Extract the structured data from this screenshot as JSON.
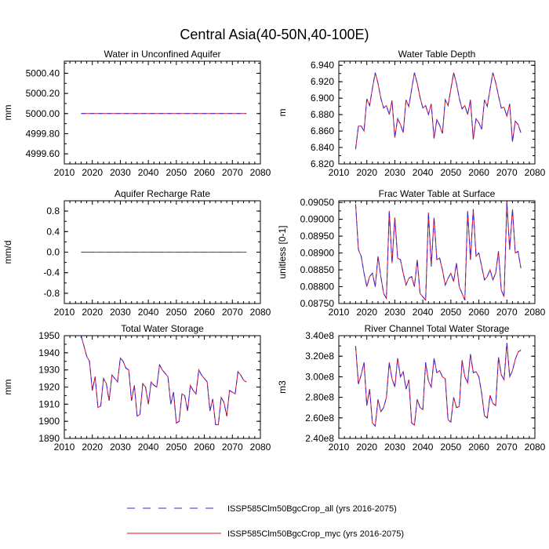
{
  "figure": {
    "title": "Central Asia(40-50N,40-100E)"
  },
  "colors": {
    "series_all": "#2b2bdd",
    "series_myc": "#e0102a",
    "axis": "#000000"
  },
  "legend": {
    "placement": "bottom-center",
    "entries": [
      "ISSP585Clm50BgcCrop_all (yrs 2016-2075)",
      "ISSP585Clm50BgcCrop_myc (yrs 2016-2075)"
    ]
  },
  "chart_data": [
    {
      "type": "line",
      "title": "Water in Unconfined Aquifer",
      "ylabel": "mm",
      "xlabel": "",
      "xlim": [
        2010,
        2080
      ],
      "ylim": [
        4999.5,
        5000.52
      ],
      "xticks": [
        2010,
        2020,
        2030,
        2040,
        2050,
        2060,
        2070,
        2080
      ],
      "xtick_labels": [
        "2010",
        "2020",
        "2030",
        "2040",
        "2050",
        "2060",
        "2070",
        "2080"
      ],
      "yticks": [
        4999.6,
        4999.8,
        5000.0,
        5000.2,
        5000.4
      ],
      "ytick_labels": [
        "4999.60",
        "4999.80",
        "5000.00",
        "5000.20",
        "5000.40"
      ],
      "x_start": 2016,
      "values": [
        5000,
        5000,
        5000,
        5000,
        5000,
        5000,
        5000,
        5000,
        5000,
        5000,
        5000,
        5000,
        5000,
        5000,
        5000,
        5000,
        5000,
        5000,
        5000,
        5000,
        5000,
        5000,
        5000,
        5000,
        5000,
        5000,
        5000,
        5000,
        5000,
        5000,
        5000,
        5000,
        5000,
        5000,
        5000,
        5000,
        5000,
        5000,
        5000,
        5000,
        5000,
        5000,
        5000,
        5000,
        5000,
        5000,
        5000,
        5000,
        5000,
        5000,
        5000,
        5000,
        5000,
        5000,
        5000,
        5000,
        5000,
        5000,
        5000,
        5000
      ]
    },
    {
      "type": "line",
      "title": "Water Table Depth",
      "ylabel": "m",
      "xlabel": "",
      "xlim": [
        2010,
        2080
      ],
      "ylim": [
        6.82,
        6.945
      ],
      "xticks": [
        2010,
        2020,
        2030,
        2040,
        2050,
        2060,
        2070,
        2080
      ],
      "xtick_labels": [
        "2010",
        "2020",
        "2030",
        "2040",
        "2050",
        "2060",
        "2070",
        "2080"
      ],
      "yticks": [
        6.82,
        6.84,
        6.86,
        6.88,
        6.9,
        6.92,
        6.94
      ],
      "ytick_labels": [
        "6.820",
        "6.840",
        "6.860",
        "6.880",
        "6.900",
        "6.920",
        "6.940"
      ],
      "x_start": 2016,
      "values": [
        6.838,
        6.866,
        6.866,
        6.86,
        6.899,
        6.891,
        6.912,
        6.931,
        6.918,
        6.9,
        6.888,
        6.891,
        6.88,
        6.897,
        6.852,
        6.875,
        6.868,
        6.858,
        6.898,
        6.89,
        6.911,
        6.931,
        6.918,
        6.901,
        6.888,
        6.891,
        6.88,
        6.893,
        6.851,
        6.874,
        6.867,
        6.857,
        6.898,
        6.891,
        6.911,
        6.931,
        6.918,
        6.9,
        6.887,
        6.891,
        6.88,
        6.898,
        6.85,
        6.875,
        6.87,
        6.862,
        6.898,
        6.89,
        6.911,
        6.931,
        6.919,
        6.903,
        6.888,
        6.889,
        6.878,
        6.893,
        6.847,
        6.872,
        6.868,
        6.858
      ]
    },
    {
      "type": "line",
      "title": "Aquifer Recharge Rate",
      "ylabel": "mm/d",
      "xlabel": "",
      "xlim": [
        2010,
        2080
      ],
      "ylim": [
        -1.0,
        1.0
      ],
      "xticks": [
        2010,
        2020,
        2030,
        2040,
        2050,
        2060,
        2070,
        2080
      ],
      "xtick_labels": [
        "2010",
        "2020",
        "2030",
        "2040",
        "2050",
        "2060",
        "2070",
        "2080"
      ],
      "yticks": [
        -0.8,
        -0.4,
        0.0,
        0.4,
        0.8
      ],
      "ytick_labels": [
        "-0.8",
        "-0.4",
        "0.0",
        "0.4",
        "0.8"
      ],
      "x_start": 2016,
      "values": [
        0,
        0,
        0,
        0,
        0,
        0,
        0,
        0,
        0,
        0,
        0,
        0,
        0,
        0,
        0,
        0,
        0,
        0,
        0,
        0,
        0,
        0,
        0,
        0,
        0,
        0,
        0,
        0,
        0,
        0,
        0,
        0,
        0,
        0,
        0,
        0,
        0,
        0,
        0,
        0,
        0,
        0,
        0,
        0,
        0,
        0,
        0,
        0,
        0,
        0,
        0,
        0,
        0,
        0,
        0,
        0,
        0,
        0,
        0,
        0
      ]
    },
    {
      "type": "line",
      "title": "Frac Water Table at Surface",
      "ylabel": "unitless [0-1]",
      "xlabel": "",
      "xlim": [
        2010,
        2080
      ],
      "ylim": [
        0.0875,
        0.09055
      ],
      "xticks": [
        2010,
        2020,
        2030,
        2040,
        2050,
        2060,
        2070,
        2080
      ],
      "xtick_labels": [
        "2010",
        "2020",
        "2030",
        "2040",
        "2050",
        "2060",
        "2070",
        "2080"
      ],
      "yticks": [
        0.0875,
        0.088,
        0.0885,
        0.089,
        0.0895,
        0.09,
        0.0905
      ],
      "ytick_labels": [
        "0.08750",
        "0.08800",
        "0.08850",
        "0.08900",
        "0.08950",
        "0.09000",
        "0.09050"
      ],
      "x_start": 2016,
      "values": [
        0.09045,
        0.0891,
        0.0889,
        0.0884,
        0.088,
        0.0883,
        0.0884,
        0.088,
        0.0889,
        0.0883,
        0.0878,
        0.08765,
        0.09025,
        0.0887,
        0.09005,
        0.08885,
        0.0888,
        0.0884,
        0.08805,
        0.08825,
        0.0883,
        0.088,
        0.0888,
        0.0878,
        0.0877,
        0.0876,
        0.0902,
        0.0886,
        0.09005,
        0.0888,
        0.08885,
        0.0885,
        0.08805,
        0.08825,
        0.0884,
        0.08815,
        0.0887,
        0.088,
        0.0878,
        0.0876,
        0.09025,
        0.0888,
        0.0903,
        0.0889,
        0.089,
        0.0886,
        0.0882,
        0.0883,
        0.0885,
        0.0882,
        0.0884,
        0.08905,
        0.0879,
        0.0877,
        0.0905,
        0.0891,
        0.0903,
        0.089,
        0.08905,
        0.08855
      ]
    },
    {
      "type": "line",
      "title": "Total Water Storage",
      "ylabel": "mm",
      "xlabel": "",
      "xlim": [
        2010,
        2080
      ],
      "ylim": [
        1890,
        1950
      ],
      "xticks": [
        2010,
        2020,
        2030,
        2040,
        2050,
        2060,
        2070,
        2080
      ],
      "xtick_labels": [
        "2010",
        "2020",
        "2030",
        "2040",
        "2050",
        "2060",
        "2070",
        "2080"
      ],
      "yticks": [
        1890,
        1900,
        1910,
        1920,
        1930,
        1940,
        1950
      ],
      "ytick_labels": [
        "1890",
        "1900",
        "1910",
        "1920",
        "1930",
        "1940",
        "1950"
      ],
      "x_start": 2016,
      "values": [
        1950,
        1944,
        1938,
        1935,
        1918,
        1926,
        1908,
        1909,
        1925,
        1922,
        1912,
        1927,
        1925,
        1923,
        1937,
        1935,
        1931,
        1930,
        1912,
        1921,
        1903,
        1904,
        1922,
        1920,
        1910,
        1923,
        1921,
        1920,
        1933,
        1930,
        1928,
        1926,
        1910,
        1917,
        1899,
        1900,
        1916,
        1915,
        1906,
        1921,
        1918,
        1916,
        1930,
        1927,
        1925,
        1923,
        1906,
        1913,
        1898,
        1898,
        1914,
        1911,
        1903,
        1918,
        1917,
        1916,
        1929,
        1927,
        1924,
        1923
      ]
    },
    {
      "type": "line",
      "title": "River Channel Total Water Storage",
      "ylabel": "m3",
      "xlabel": "",
      "xlim": [
        2010,
        2080
      ],
      "ylim": [
        240000000,
        340000000
      ],
      "xticks": [
        2010,
        2020,
        2030,
        2040,
        2050,
        2060,
        2070,
        2080
      ],
      "xtick_labels": [
        "2010",
        "2020",
        "2030",
        "2040",
        "2050",
        "2060",
        "2070",
        "2080"
      ],
      "yticks": [
        240000000,
        260000000,
        280000000,
        300000000,
        320000000,
        340000000
      ],
      "ytick_labels": [
        "2.40e8",
        "2.60e8",
        "2.80e8",
        "3.00e8",
        "3.20e8",
        "3.40e8"
      ],
      "x_start": 2016,
      "values": [
        330000000,
        293000000,
        302000000,
        314000000,
        272000000,
        288000000,
        255000000,
        252000000,
        278000000,
        266000000,
        270000000,
        280000000,
        314000000,
        298000000,
        290000000,
        318000000,
        300000000,
        305000000,
        288000000,
        297000000,
        255000000,
        253000000,
        278000000,
        270000000,
        268000000,
        314000000,
        296000000,
        290000000,
        318000000,
        304000000,
        306000000,
        300000000,
        298000000,
        258000000,
        256000000,
        280000000,
        270000000,
        271000000,
        316000000,
        300000000,
        294000000,
        322000000,
        304000000,
        305000000,
        300000000,
        284000000,
        262000000,
        260000000,
        282000000,
        274000000,
        272000000,
        319000000,
        302000000,
        297000000,
        333000000,
        300000000,
        306000000,
        317000000,
        324000000,
        326000000
      ]
    }
  ]
}
